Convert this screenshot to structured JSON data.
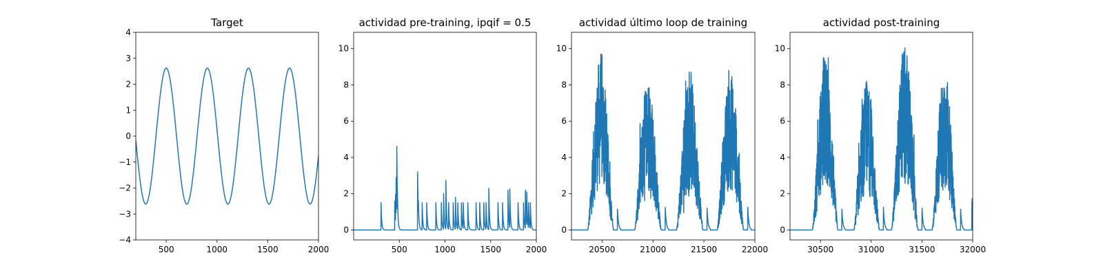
{
  "figure": {
    "line_color": "#1f77b4"
  },
  "chart_data": [
    {
      "type": "line",
      "title": "Target",
      "xlim": [
        200,
        2000
      ],
      "ylim": [
        -4,
        4
      ],
      "xticks": [
        500,
        1000,
        1500,
        2000
      ],
      "yticks": [
        -4,
        -3,
        -2,
        -1,
        0,
        1,
        2,
        3,
        4
      ],
      "xtick_labels": [
        "500",
        "1000",
        "1500",
        "2000"
      ],
      "ytick_labels": [
        "−4",
        "−3",
        "−2",
        "−1",
        "0",
        "1",
        "2",
        "3",
        "4"
      ],
      "series": [
        {
          "shape": "sine",
          "amplitude": 2.62,
          "period": 405,
          "peak_x": [
            500,
            905,
            1310,
            1715
          ]
        }
      ]
    },
    {
      "type": "line",
      "title": "actividad pre-training, ipqif = 0.5",
      "xlim": [
        0,
        2000
      ],
      "ylim": [
        -0.55,
        10.9
      ],
      "xticks": [
        500,
        1000,
        1500,
        2000
      ],
      "yticks": [
        0,
        2,
        4,
        6,
        8,
        10
      ],
      "xtick_labels": [
        "500",
        "1000",
        "1500",
        "2000"
      ],
      "ytick_labels": [
        "0",
        "2",
        "4",
        "6",
        "8",
        "10"
      ],
      "series": [
        {
          "shape": "spikes",
          "events": [
            [
              300,
              1.5
            ],
            [
              450,
              1.6
            ],
            [
              458,
              2.2
            ],
            [
              465,
              2.9
            ],
            [
              472,
              4.95
            ],
            [
              478,
              2.5
            ],
            [
              700,
              3.2
            ],
            [
              708,
              1.8
            ],
            [
              750,
              1.5
            ],
            [
              800,
              1.5
            ],
            [
              900,
              1.5
            ],
            [
              960,
              1.5
            ],
            [
              985,
              2.0
            ],
            [
              1010,
              2.75
            ],
            [
              1040,
              1.5
            ],
            [
              1090,
              1.5
            ],
            [
              1115,
              1.8
            ],
            [
              1140,
              1.5
            ],
            [
              1180,
              1.5
            ],
            [
              1200,
              1.5
            ],
            [
              1250,
              1.5
            ],
            [
              1340,
              1.5
            ],
            [
              1380,
              1.5
            ],
            [
              1425,
              1.5
            ],
            [
              1450,
              1.5
            ],
            [
              1480,
              2.3
            ],
            [
              1580,
              1.5
            ],
            [
              1630,
              1.5
            ],
            [
              1690,
              2.2
            ],
            [
              1710,
              2.25
            ],
            [
              1800,
              1.5
            ],
            [
              1860,
              1.5
            ],
            [
              1880,
              2.2
            ],
            [
              1895,
              2.1
            ],
            [
              1915,
              1.5
            ],
            [
              1935,
              1.5
            ]
          ],
          "decay": 7
        }
      ]
    },
    {
      "type": "line",
      "title": "actividad último loop de training",
      "xlim": [
        20200,
        22000
      ],
      "ylim": [
        -0.55,
        10.9
      ],
      "xticks": [
        20500,
        21000,
        21500,
        22000
      ],
      "yticks": [
        0,
        2,
        4,
        6,
        8,
        10
      ],
      "xtick_labels": [
        "20500",
        "21000",
        "21500",
        "22000"
      ],
      "ytick_labels": [
        "0",
        "2",
        "4",
        "6",
        "8",
        "10"
      ],
      "series": [
        {
          "shape": "noisy_bursts",
          "bursts": [
            {
              "start": 20360,
              "end": 20650,
              "peak": 9.7
            },
            {
              "start": 20820,
              "end": 21120,
              "peak": 8.6
            },
            {
              "start": 21230,
              "end": 21530,
              "peak": 8.7
            },
            {
              "start": 21630,
              "end": 21930,
              "peak": 8.8
            }
          ]
        }
      ]
    },
    {
      "type": "line",
      "title": "actividad post-training",
      "xlim": [
        30200,
        32000
      ],
      "ylim": [
        -0.55,
        10.9
      ],
      "xticks": [
        30500,
        31000,
        31500,
        32000
      ],
      "yticks": [
        0,
        2,
        4,
        6,
        8,
        10
      ],
      "xtick_labels": [
        "30500",
        "31000",
        "31500",
        "32000"
      ],
      "ytick_labels": [
        "0",
        "2",
        "4",
        "6",
        "8",
        "10"
      ],
      "series": [
        {
          "shape": "noisy_bursts",
          "bursts": [
            {
              "start": 30420,
              "end": 30710,
              "peak": 9.5
            },
            {
              "start": 30830,
              "end": 31120,
              "peak": 8.2
            },
            {
              "start": 31200,
              "end": 31500,
              "peak": 10.4
            },
            {
              "start": 31600,
              "end": 31880,
              "peak": 9.2
            },
            {
              "start": 31990,
              "end": 32000,
              "peak": 2.2
            }
          ]
        }
      ]
    }
  ]
}
